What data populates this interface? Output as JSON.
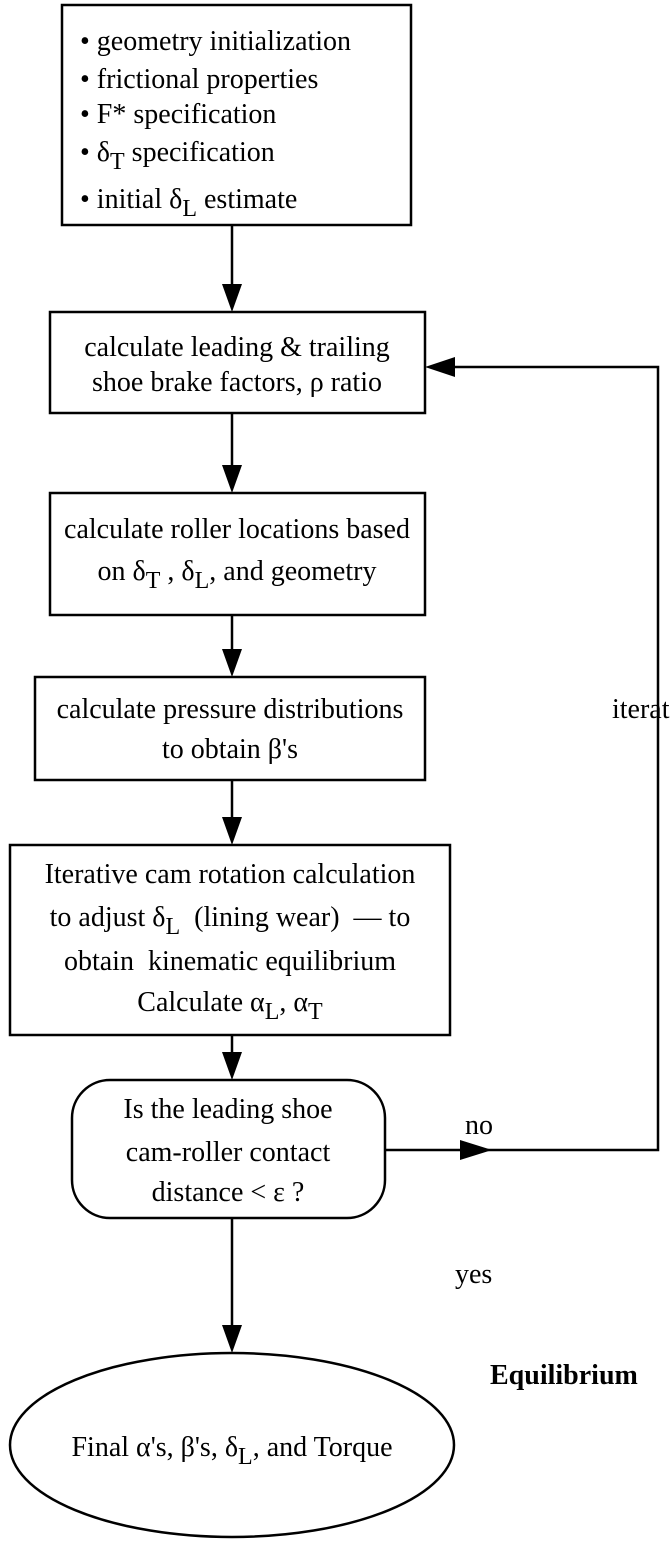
{
  "nodes": [
    {
      "lines": [
        [
          "• geometry initialization"
        ],
        [
          "• frictional properties"
        ],
        [
          "• F* specification"
        ],
        [
          "• δ",
          "T",
          " specification"
        ],
        [
          "• initial δ",
          "L",
          " estimate"
        ]
      ]
    },
    {
      "lines": [
        [
          "calculate leading & trailing"
        ],
        [
          "shoe brake factors, ρ ratio"
        ]
      ]
    },
    {
      "lines": [
        [
          "calculate roller locations based"
        ],
        [
          "on δ",
          "T",
          " , δ",
          "L",
          ", and geometry"
        ]
      ]
    },
    {
      "lines": [
        [
          "calculate pressure distributions"
        ],
        [
          "to obtain β's"
        ]
      ]
    },
    {
      "lines": [
        [
          "Iterative cam rotation calculation"
        ],
        [
          "to adjust δ",
          "L",
          "  (lining wear)  — to"
        ],
        [
          "obtain  kinematic equilibrium"
        ],
        [
          "Calculate α",
          "L",
          ", α",
          "T"
        ]
      ]
    },
    {
      "lines": [
        [
          "Is the leading shoe"
        ],
        [
          "cam-roller contact"
        ],
        [
          "distance < ε ?"
        ]
      ]
    },
    {
      "lines": [
        [
          "Final α's, β's, δ",
          "L",
          ", and Torque"
        ]
      ]
    }
  ],
  "labels": {
    "no": "no",
    "yes": "yes",
    "iterate": "iterate",
    "equilibrium": "Equilibrium"
  }
}
